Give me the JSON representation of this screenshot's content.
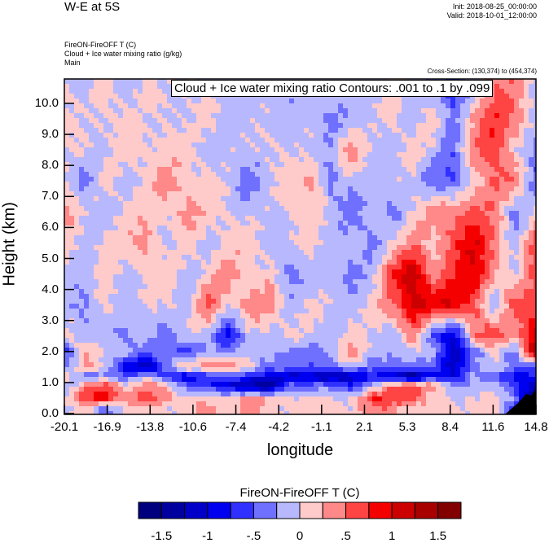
{
  "header": {
    "title": "W-E at 5S",
    "init": "Init: 2018-08-25_00:00:00",
    "valid": "Valid: 2018-10-01_12:00:00",
    "field_lines": [
      "FireON-FireOFF T   (C)",
      "Cloud + Ice water mixing ratio   (g/kg)",
      "Main"
    ],
    "cross_section": "Cross-Section: (130,374) to (454,374)"
  },
  "chart_data": {
    "type": "heatmap",
    "title": "W-E at 5S",
    "annotation": "Cloud + Ice water mixing ratio Contours: .001 to .1 by .099",
    "xlabel": "longitude",
    "ylabel": "Height (km)",
    "xlim": [
      -20.1,
      14.8
    ],
    "ylim": [
      0,
      10.8
    ],
    "x_ticks": [
      "-20.1",
      "-16.9",
      "-13.8",
      "-10.6",
      "-7.4",
      "-4.2",
      "-1.1",
      "2.1",
      "5.3",
      "8.4",
      "11.6",
      "14.8"
    ],
    "y_ticks": [
      "0.0",
      "1.0",
      "2.0",
      "3.0",
      "4.0",
      "5.0",
      "6.0",
      "7.0",
      "8.0",
      "9.0",
      "10.0"
    ],
    "grid_heights": [
      10.5,
      9.5,
      8.5,
      7.5,
      6.5,
      5.5,
      4.5,
      3.5,
      2.5,
      2.0,
      1.5,
      1.2,
      0.9,
      0.5,
      0.15
    ],
    "values": [
      [
        0.1,
        -0.1,
        0.1,
        -0.1,
        0.1,
        -0.1,
        0.1,
        -0.1,
        -0.1,
        -0.1,
        -0.1,
        -0.2,
        -0.1,
        -0.1,
        -0.1,
        -0.1,
        0.1,
        -0.1,
        -0.2,
        -0.8,
        -0.1,
        0.5,
        0.4,
        -0.1
      ],
      [
        0.1,
        -0.1,
        0.1,
        0.1,
        -0.1,
        0.1,
        -0.1,
        0.1,
        -0.1,
        -0.1,
        -0.1,
        -0.1,
        -0.1,
        -0.4,
        -0.1,
        -0.1,
        0.1,
        -0.1,
        0.1,
        -0.4,
        0.4,
        0.7,
        0.5,
        -0.1
      ],
      [
        -0.1,
        0.1,
        -0.1,
        0.1,
        0.1,
        0.1,
        0.1,
        -0.1,
        -0.1,
        -0.1,
        0.1,
        -0.1,
        -0.1,
        -0.1,
        0.4,
        -0.1,
        -0.1,
        0.1,
        -0.1,
        -0.4,
        0.4,
        0.7,
        0.1,
        -0.4
      ],
      [
        0.1,
        -0.4,
        0.1,
        -0.1,
        0.1,
        0.4,
        0.1,
        0.1,
        -0.1,
        -0.4,
        -0.1,
        0.1,
        0.4,
        -0.4,
        -0.1,
        -0.1,
        -0.1,
        -0.1,
        -0.4,
        -0.6,
        0.1,
        0.6,
        0.4,
        -0.5
      ],
      [
        0.4,
        -0.1,
        -0.1,
        0.1,
        0.1,
        0.1,
        0.4,
        0.1,
        0.1,
        -0.1,
        -0.1,
        0.1,
        0.1,
        -0.1,
        -0.4,
        -0.1,
        -0.4,
        0.1,
        0.4,
        0.4,
        0.7,
        0.4,
        -0.4,
        0.1
      ],
      [
        0.1,
        -0.1,
        0.1,
        0.1,
        0.4,
        -0.1,
        0.1,
        -0.1,
        0.1,
        0.1,
        -0.1,
        -0.1,
        0.1,
        -0.1,
        -0.1,
        -0.4,
        0.1,
        0.4,
        0.1,
        0.7,
        1.0,
        0.4,
        -0.1,
        0.6
      ],
      [
        -0.1,
        -0.1,
        0.1,
        -0.1,
        0.1,
        0.1,
        -0.1,
        0.1,
        0.4,
        0.1,
        0.1,
        -0.4,
        -0.1,
        -0.1,
        -0.4,
        -0.1,
        0.7,
        1.2,
        0.4,
        0.7,
        1.0,
        0.4,
        -0.1,
        0.7
      ],
      [
        -0.1,
        -0.4,
        0.1,
        -0.1,
        -0.1,
        0.1,
        -0.1,
        0.6,
        0.1,
        0.4,
        0.4,
        -0.1,
        0.1,
        -0.1,
        -0.1,
        0.1,
        0.4,
        1.2,
        0.9,
        1.0,
        0.7,
        -0.4,
        0.7,
        0.6
      ],
      [
        0.1,
        -0.1,
        -0.1,
        -0.4,
        -0.1,
        -0.4,
        -0.1,
        -0.1,
        -0.9,
        -0.1,
        -0.1,
        0.1,
        -0.1,
        -0.1,
        0.1,
        -0.1,
        -0.1,
        0.4,
        -0.6,
        -1.0,
        0.4,
        0.7,
        0.4,
        1.0
      ],
      [
        -0.7,
        0.4,
        -0.1,
        -0.1,
        -0.4,
        -0.4,
        -0.7,
        -0.1,
        -0.4,
        -0.1,
        -0.1,
        -0.4,
        -0.4,
        -0.1,
        0.4,
        -0.1,
        -0.1,
        -0.1,
        -0.1,
        -1.2,
        -0.4,
        0.1,
        -0.4,
        1.4
      ],
      [
        -0.4,
        0.4,
        -0.1,
        -1.0,
        -1.2,
        -0.4,
        0.4,
        0.4,
        0.4,
        0.1,
        -0.4,
        -0.4,
        -0.4,
        -0.4,
        -0.1,
        -0.4,
        -0.4,
        -0.4,
        -0.4,
        -1.2,
        -0.4,
        0.1,
        -0.4,
        -0.7
      ],
      [
        0.4,
        -0.4,
        -0.4,
        -0.4,
        -0.1,
        -0.7,
        -1.0,
        -0.7,
        -0.4,
        -0.7,
        -1.0,
        -1.2,
        -1.0,
        -1.4,
        -1.2,
        -0.7,
        -1.2,
        -1.6,
        -0.7,
        -1.0,
        -0.1,
        -0.4,
        -1.0,
        -0.7
      ],
      [
        -0.4,
        0.4,
        0.7,
        0.1,
        0.4,
        0.1,
        -0.4,
        -0.7,
        -1.0,
        -1.2,
        -1.6,
        -0.4,
        -0.4,
        -0.4,
        -0.7,
        -0.1,
        0.4,
        0.7,
        0.4,
        -0.4,
        -0.1,
        -0.1,
        -0.7,
        -1.2
      ],
      [
        0.1,
        0.7,
        0.9,
        0.4,
        0.7,
        0.4,
        0.1,
        0.1,
        0.1,
        0.4,
        0.1,
        0.1,
        0.1,
        -0.1,
        0.1,
        0.7,
        0.7,
        0.7,
        0.1,
        -0.1,
        0.1,
        0.1,
        -0.4,
        -1.7
      ],
      [
        -0.1,
        0.1,
        -0.4,
        0.1,
        0.1,
        0.1,
        0.1,
        0.4,
        0.1,
        0.4,
        0.1,
        0.1,
        0.1,
        0.1,
        0.1,
        0.4,
        0.4,
        0.1,
        0.1,
        0.1,
        0.1,
        0.1,
        -0.7,
        -1.8
      ]
    ],
    "colorbar": {
      "title": "FireON-FireOFF T  (C)",
      "levels": [
        -1.5,
        -1.25,
        -1,
        -0.75,
        -0.5,
        -0.25,
        0,
        0.25,
        0.5,
        0.75,
        1,
        1.25,
        1.5
      ],
      "labels": [
        "-1.5",
        "-1",
        "-.5",
        "0",
        ".5",
        "1",
        "1.5"
      ],
      "colors": [
        "#00007f",
        "#00009f",
        "#0000c8",
        "#0000f0",
        "#3030ff",
        "#7070ff",
        "#b8b8ff",
        "#ffcaca",
        "#ff8888",
        "#ff4444",
        "#f50000",
        "#cc0000",
        "#a80000",
        "#820000"
      ]
    }
  }
}
